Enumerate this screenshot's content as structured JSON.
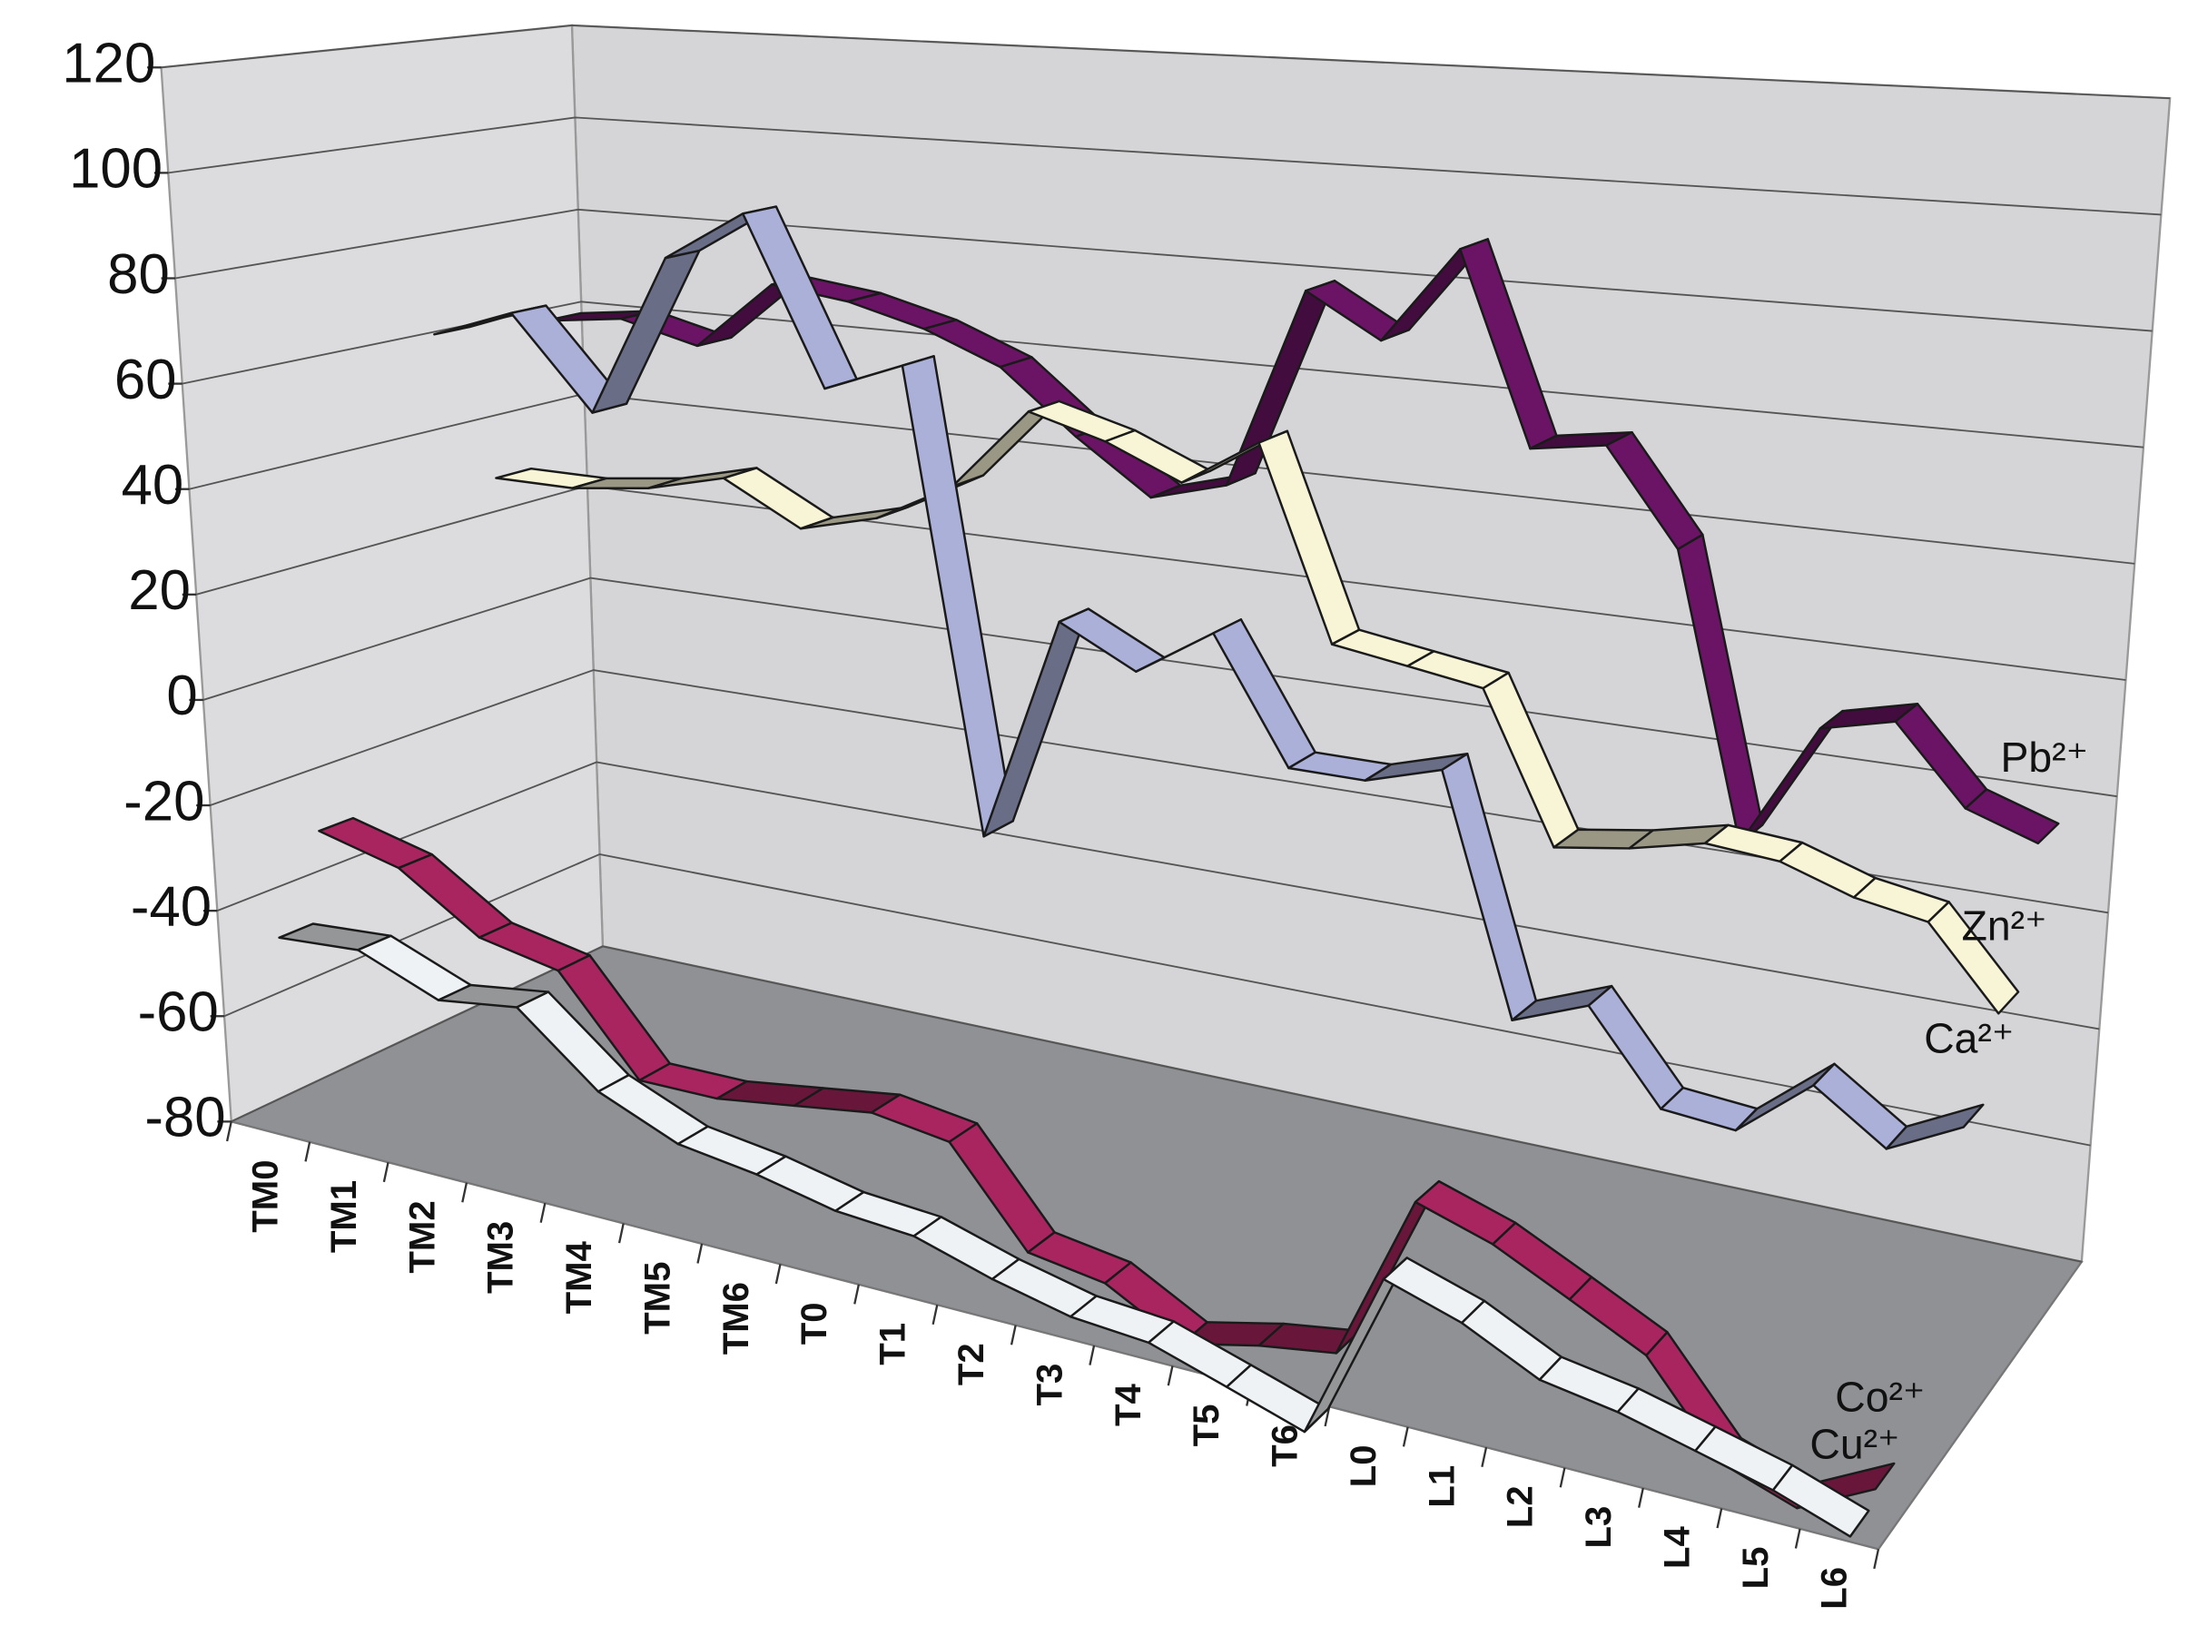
{
  "chart_data": {
    "type": "line3d",
    "categories": [
      "TM0",
      "TM1",
      "TM2",
      "TM3",
      "TM4",
      "TM5",
      "TM6",
      "T0",
      "T1",
      "T2",
      "T3",
      "T4",
      "T5",
      "T6",
      "L0",
      "L1",
      "L2",
      "L3",
      "L4",
      "L5",
      "L6"
    ],
    "ylim": [
      -80,
      120
    ],
    "yticks": [
      -80,
      -60,
      -40,
      -20,
      0,
      20,
      40,
      60,
      80,
      100,
      120
    ],
    "grid": true,
    "series": [
      {
        "name": "Pb²⁺",
        "color": "#6b1466",
        "values": [
          60,
          62,
          58,
          72,
          70,
          66,
          60,
          48,
          38,
          42,
          80,
          72,
          90,
          55,
          57,
          40,
          -10,
          12,
          15,
          2,
          -2
        ]
      },
      {
        "name": "Zn²⁺",
        "color": "#f8f5d6",
        "values": [
          30,
          30,
          32,
          36,
          28,
          32,
          40,
          56,
          52,
          46,
          55,
          20,
          18,
          16,
          -10,
          -8,
          -5,
          -6,
          -10,
          -12,
          -25
        ]
      },
      {
        "name": "Ca²⁺",
        "color": "#aab0d8",
        "values": [
          62,
          68,
          50,
          82,
          92,
          60,
          66,
          -20,
          22,
          15,
          24,
          2,
          2,
          6,
          -35,
          -30,
          -45,
          -46,
          -36,
          -44,
          -38
        ]
      },
      {
        "name": "Co²⁺",
        "color": "#a8255f",
        "values": [
          -28,
          -32,
          -42,
          -45,
          -62,
          -62,
          -60,
          -58,
          -60,
          -76,
          -78,
          -85,
          -82,
          -80,
          -52,
          -56,
          -62,
          -68,
          -82,
          -86,
          -80
        ]
      },
      {
        "name": "Cu²⁺",
        "color": "#eef2f4",
        "values": [
          -45,
          -44,
          -50,
          -48,
          -60,
          -66,
          -68,
          -71,
          -72,
          -76,
          -79,
          -80,
          -84,
          -88,
          -60,
          -64,
          -70,
          -72,
          -75,
          -78,
          -82
        ]
      }
    ]
  }
}
